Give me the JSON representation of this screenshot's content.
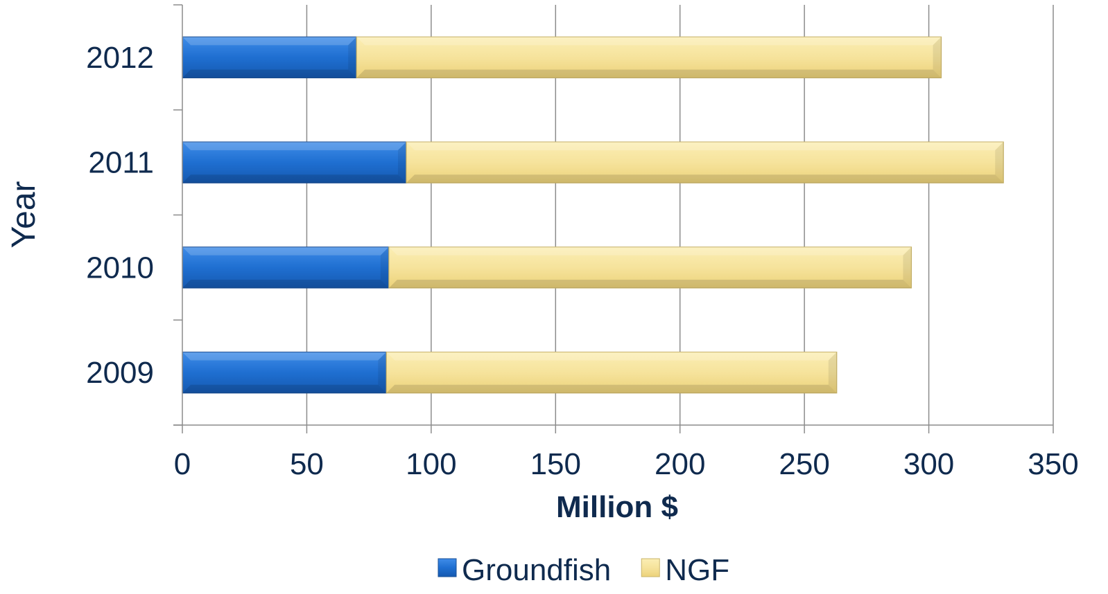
{
  "chart_data": {
    "type": "bar",
    "orientation": "horizontal",
    "stacked": true,
    "categories": [
      "2012",
      "2011",
      "2010",
      "2009"
    ],
    "series": [
      {
        "name": "Groundfish",
        "values": [
          70,
          90,
          83,
          82
        ],
        "color": "#1f6fd1"
      },
      {
        "name": "NGF",
        "values": [
          235,
          240,
          210,
          181
        ],
        "color": "#f3dd8e"
      }
    ],
    "xlabel": "Million $",
    "ylabel": "Year",
    "xlim": [
      0,
      350
    ],
    "xticks": [
      "0",
      "50",
      "100",
      "150",
      "200",
      "250",
      "300",
      "350"
    ],
    "grid": true,
    "legend_position": "bottom"
  }
}
